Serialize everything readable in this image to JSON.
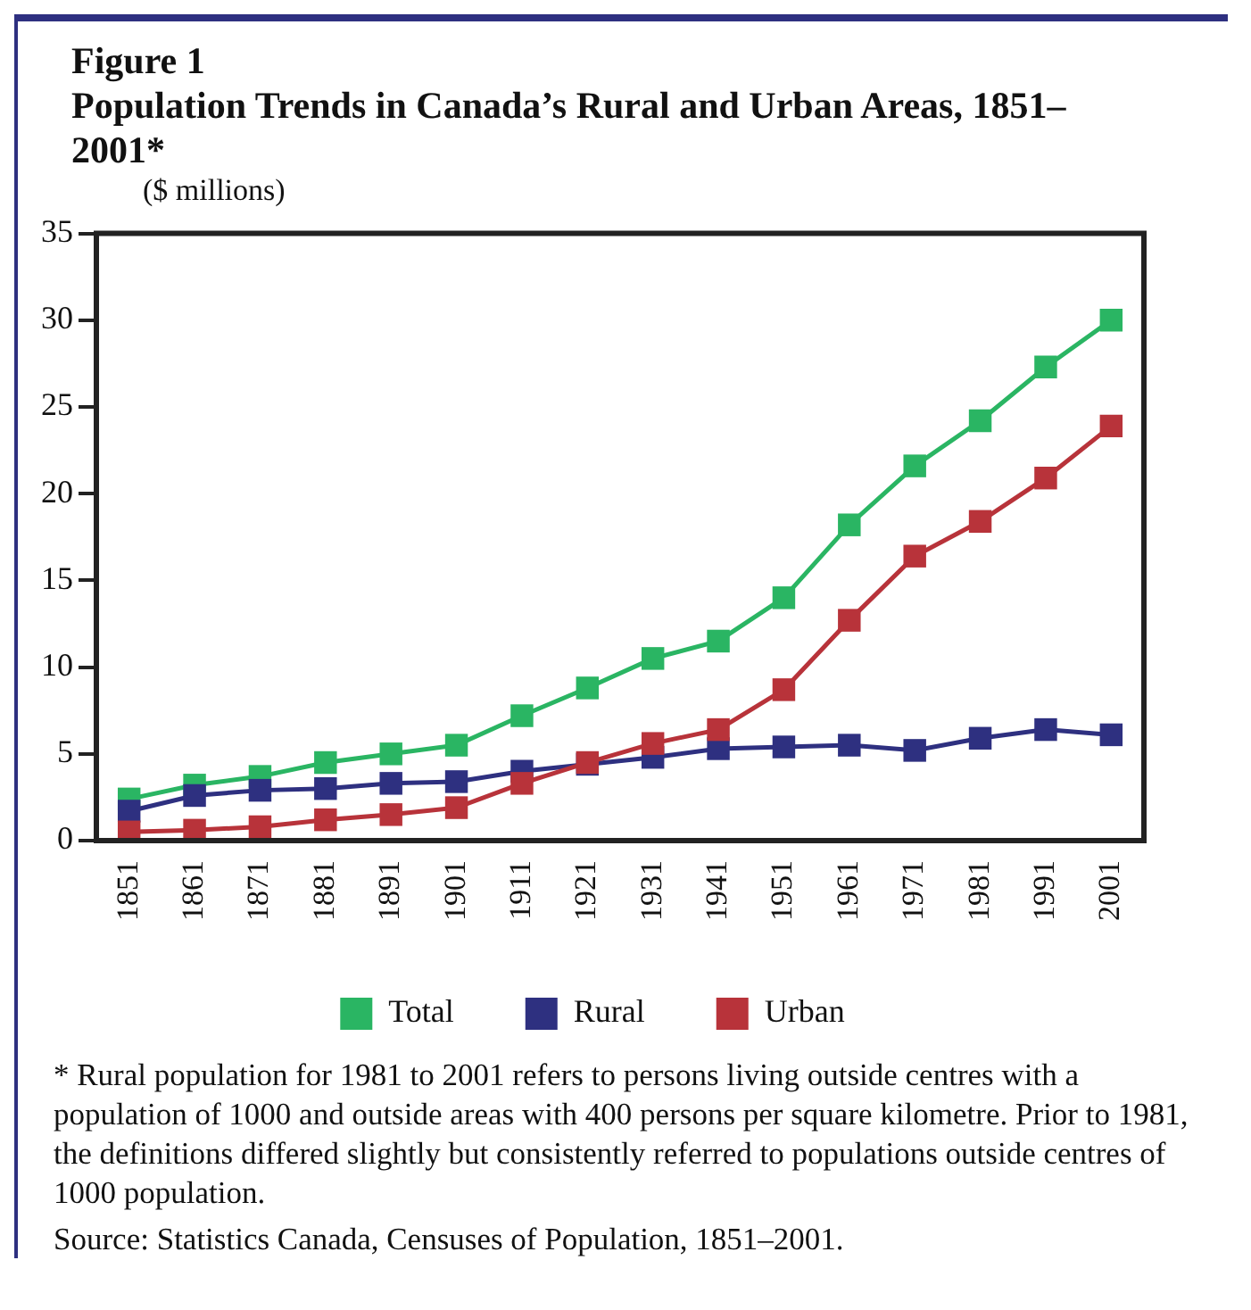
{
  "chart_data": {
    "type": "line",
    "title": "Figure 1",
    "subtitle": "Population Trends in Canada’s Rural and Urban Areas, 1851–2001*",
    "ylabel": "($ millions)",
    "categories": [
      "1851",
      "1861",
      "1871",
      "1881",
      "1891",
      "1901",
      "1911",
      "1921",
      "1931",
      "1941",
      "1951",
      "1961",
      "1971",
      "1981",
      "1991",
      "2001"
    ],
    "series": [
      {
        "name": "Urban",
        "color": "#b8333a",
        "values": [
          0.5,
          0.6,
          0.8,
          1.2,
          1.5,
          1.9,
          3.3,
          4.5,
          5.6,
          6.4,
          8.7,
          12.7,
          16.4,
          18.4,
          20.9,
          23.9
        ]
      },
      {
        "name": "Rural",
        "color": "#2e3080",
        "values": [
          1.7,
          2.6,
          2.9,
          3.0,
          3.3,
          3.4,
          4.0,
          4.4,
          4.8,
          5.3,
          5.4,
          5.5,
          5.2,
          5.9,
          6.4,
          6.1
        ]
      },
      {
        "name": "Total",
        "color": "#2ab563",
        "values": [
          2.4,
          3.2,
          3.7,
          4.5,
          5.0,
          5.5,
          7.2,
          8.8,
          10.5,
          11.5,
          14.0,
          18.2,
          21.6,
          24.2,
          27.3,
          30.0
        ]
      }
    ],
    "ylim": [
      0,
      35
    ],
    "yticks": [
      0,
      5,
      10,
      15,
      20,
      25,
      30,
      35
    ],
    "marker": "square",
    "legend": "bottom",
    "annotations": [
      "* Rural population for 1981 to 2001 refers to persons living outside centres with a population of 1000 and outside areas with 400 persons per square kilometre. Prior to 1981, the definitions differed slightly but consistently referred to populations outside centres of 1000 population.",
      "Source: Statistics Canada, Censuses of Population, 1851–2001."
    ]
  }
}
